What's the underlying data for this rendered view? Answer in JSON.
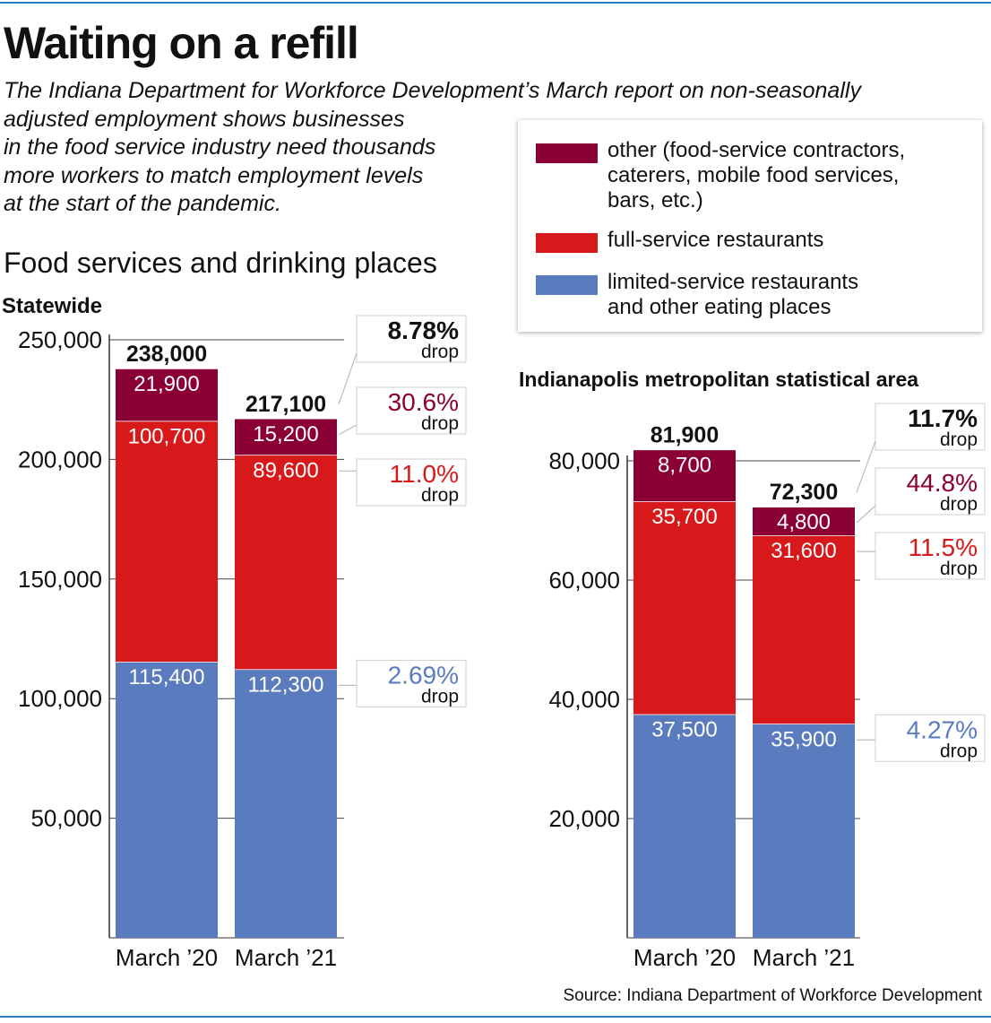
{
  "title": "Waiting on a refill",
  "intro": [
    "The Indiana Department for Workforce Development’s March report on non-seasonally",
    "adjusted employment shows businesses",
    "in the food service industry need thousands",
    "more workers to match employment levels",
    "at the start of the pandemic."
  ],
  "section_title": "Food services and drinking places",
  "legend": [
    {
      "label_lines": [
        "other (food-service contractors,",
        "caterers, mobile food services,",
        "bars, etc.)"
      ],
      "color": "#8b0034"
    },
    {
      "label_lines": [
        "full-service restaurants"
      ],
      "color": "#d7191c"
    },
    {
      "label_lines": [
        "limited-service restaurants",
        "and other eating places"
      ],
      "color": "#5b7bbf"
    }
  ],
  "source": "Source: Indiana Department of Workforce Development",
  "chart_data": [
    {
      "type": "bar",
      "stacked": true,
      "title": "Statewide",
      "categories": [
        "March ’20",
        "March ’21"
      ],
      "ylim": [
        0,
        250000
      ],
      "ytick_labels": [
        "50,000",
        "100,000",
        "150,000",
        "200,000",
        "250,000"
      ],
      "series": [
        {
          "name": "limited-service restaurants and other eating places",
          "values": [
            115400,
            112300
          ],
          "value_labels": [
            "115,400",
            "112,300"
          ],
          "change": "2.69%",
          "change_label": "drop",
          "color": "#5b7bbf",
          "text_color": "#5b7bbf"
        },
        {
          "name": "full-service restaurants",
          "values": [
            100700,
            89600
          ],
          "value_labels": [
            "100,700",
            "89,600"
          ],
          "change": "11.0%",
          "change_label": "drop",
          "color": "#d7191c",
          "text_color": "#d7191c"
        },
        {
          "name": "other (food-service contractors, caterers, mobile food services, bars, etc.)",
          "values": [
            21900,
            15200
          ],
          "value_labels": [
            "21,900",
            "15,200"
          ],
          "change": "30.6%",
          "change_label": "drop",
          "color": "#8b0034",
          "text_color": "#8b0034"
        }
      ],
      "totals": [
        238000,
        217100
      ],
      "total_labels": [
        "238,000",
        "217,100"
      ],
      "total_change": "8.78%",
      "total_change_label": "drop"
    },
    {
      "type": "bar",
      "stacked": true,
      "title": "Indianapolis metropolitan statistical area",
      "categories": [
        "March ’20",
        "March ’21"
      ],
      "ylim": [
        0,
        80000
      ],
      "ytick_labels": [
        "20,000",
        "40,000",
        "60,000",
        "80,000"
      ],
      "series": [
        {
          "name": "limited-service restaurants and other eating places",
          "values": [
            37500,
            35900
          ],
          "value_labels": [
            "37,500",
            "35,900"
          ],
          "change": "4.27%",
          "change_label": "drop",
          "color": "#5b7bbf",
          "text_color": "#5b7bbf"
        },
        {
          "name": "full-service restaurants",
          "values": [
            35700,
            31600
          ],
          "value_labels": [
            "35,700",
            "31,600"
          ],
          "change": "11.5%",
          "change_label": "drop",
          "color": "#d7191c",
          "text_color": "#d7191c"
        },
        {
          "name": "other (food-service contractors, caterers, mobile food services, bars, etc.)",
          "values": [
            8700,
            4800
          ],
          "value_labels": [
            "8,700",
            "4,800"
          ],
          "change": "44.8%",
          "change_label": "drop",
          "color": "#8b0034",
          "text_color": "#8b0034"
        }
      ],
      "totals": [
        81900,
        72300
      ],
      "total_labels": [
        "81,900",
        "72,300"
      ],
      "total_change": "11.7%",
      "total_change_label": "drop"
    }
  ]
}
